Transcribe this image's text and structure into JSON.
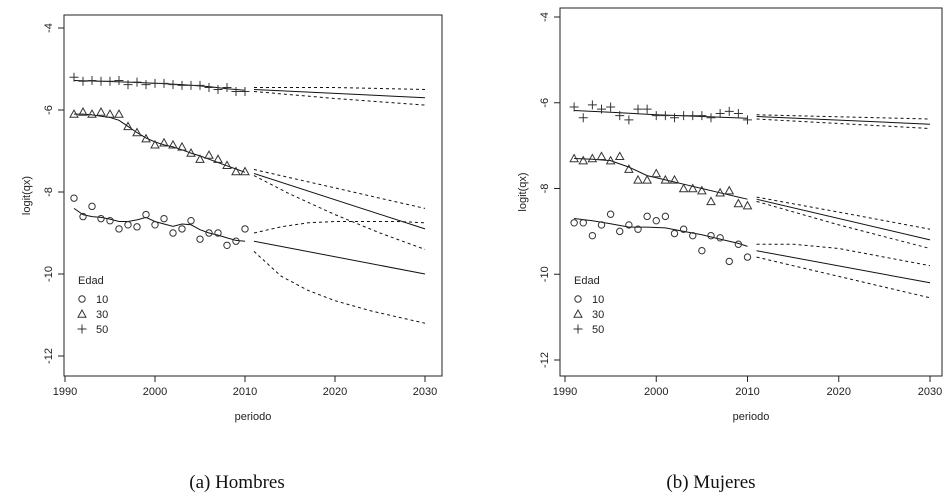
{
  "chart_data": [
    {
      "type": "line",
      "caption": "(a) Hombres",
      "xlabel": "periodo",
      "ylabel": "logit(qx)",
      "xlim": [
        1990,
        2030
      ],
      "ylim": [
        -12,
        -4
      ],
      "xticks": [
        "1990",
        "2000",
        "2010",
        "2020",
        "2030"
      ],
      "yticks": [
        "-4",
        "-6",
        "-8",
        "-10",
        "-12"
      ],
      "legend_title": "Edad",
      "legend_placement": "bottom-left",
      "series": [
        {
          "name": "10",
          "marker": "circle",
          "observed_x": [
            1991,
            1992,
            1993,
            1994,
            1995,
            1996,
            1997,
            1998,
            1999,
            2000,
            2001,
            2002,
            2003,
            2004,
            2005,
            2006,
            2007,
            2008,
            2009,
            2010
          ],
          "observed_y": [
            -8.15,
            -8.6,
            -8.35,
            -8.65,
            -8.7,
            -8.9,
            -8.8,
            -8.85,
            -8.55,
            -8.8,
            -8.65,
            -9.0,
            -8.9,
            -8.7,
            -9.15,
            -9.0,
            -9.0,
            -9.3,
            -9.2,
            -8.9
          ],
          "fitted_x": [
            1991,
            1992,
            1993,
            1994,
            1995,
            1996,
            1997,
            1998,
            1999,
            2000,
            2001,
            2002,
            2003,
            2004,
            2005,
            2006,
            2007,
            2008,
            2009,
            2010
          ],
          "fitted_y": [
            -8.4,
            -8.55,
            -8.6,
            -8.62,
            -8.66,
            -8.72,
            -8.72,
            -8.68,
            -8.62,
            -8.72,
            -8.78,
            -8.84,
            -8.78,
            -8.8,
            -8.92,
            -9.0,
            -9.05,
            -9.12,
            -9.18,
            -9.2
          ],
          "forecast_x": [
            2011,
            2030
          ],
          "forecast_y": [
            -9.2,
            -10.0
          ],
          "lower_x": [
            2011,
            2014,
            2017,
            2020,
            2024,
            2027,
            2030
          ],
          "lower_y": [
            -9.45,
            -10.05,
            -10.4,
            -10.65,
            -10.9,
            -11.05,
            -11.2
          ],
          "upper_x": [
            2011,
            2014,
            2017,
            2020,
            2024,
            2027,
            2030
          ],
          "upper_y": [
            -9.0,
            -8.85,
            -8.75,
            -8.72,
            -8.72,
            -8.72,
            -8.75
          ]
        },
        {
          "name": "30",
          "marker": "triangle",
          "observed_x": [
            1991,
            1992,
            1993,
            1994,
            1995,
            1996,
            1997,
            1998,
            1999,
            2000,
            2001,
            2002,
            2003,
            2004,
            2005,
            2006,
            2007,
            2008,
            2009,
            2010
          ],
          "observed_y": [
            -6.1,
            -6.05,
            -6.1,
            -6.05,
            -6.1,
            -6.1,
            -6.4,
            -6.55,
            -6.7,
            -6.85,
            -6.8,
            -6.85,
            -6.9,
            -7.05,
            -7.2,
            -7.1,
            -7.2,
            -7.35,
            -7.5,
            -7.5
          ],
          "fitted_x": [
            1991,
            1992,
            1993,
            1994,
            1995,
            1996,
            1997,
            1998,
            1999,
            2000,
            2001,
            2002,
            2003,
            2004,
            2005,
            2006,
            2007,
            2008,
            2009,
            2010
          ],
          "fitted_y": [
            -6.1,
            -6.1,
            -6.12,
            -6.15,
            -6.18,
            -6.25,
            -6.4,
            -6.55,
            -6.68,
            -6.78,
            -6.85,
            -6.9,
            -6.97,
            -7.05,
            -7.12,
            -7.2,
            -7.28,
            -7.36,
            -7.44,
            -7.52
          ],
          "forecast_x": [
            2011,
            2030
          ],
          "forecast_y": [
            -7.55,
            -8.9
          ],
          "lower_x": [
            2011,
            2015,
            2020,
            2025,
            2030
          ],
          "lower_y": [
            -7.6,
            -8.05,
            -8.55,
            -9.0,
            -9.4
          ],
          "upper_x": [
            2011,
            2015,
            2020,
            2025,
            2030
          ],
          "upper_y": [
            -7.45,
            -7.65,
            -7.9,
            -8.15,
            -8.4
          ]
        },
        {
          "name": "50",
          "marker": "plus",
          "observed_x": [
            1991,
            1992,
            1993,
            1994,
            1995,
            1996,
            1997,
            1998,
            1999,
            2000,
            2001,
            2002,
            2003,
            2004,
            2005,
            2006,
            2007,
            2008,
            2009,
            2010
          ],
          "observed_y": [
            -5.2,
            -5.3,
            -5.28,
            -5.3,
            -5.3,
            -5.28,
            -5.38,
            -5.32,
            -5.38,
            -5.35,
            -5.35,
            -5.38,
            -5.4,
            -5.4,
            -5.4,
            -5.45,
            -5.5,
            -5.45,
            -5.55,
            -5.55
          ],
          "fitted_x": [
            1991,
            1994,
            1997,
            2000,
            2003,
            2006,
            2008,
            2010
          ],
          "fitted_y": [
            -5.28,
            -5.3,
            -5.32,
            -5.35,
            -5.38,
            -5.43,
            -5.48,
            -5.52
          ],
          "forecast_x": [
            2011,
            2030
          ],
          "forecast_y": [
            -5.5,
            -5.7
          ],
          "lower_x": [
            2011,
            2020,
            2030
          ],
          "lower_y": [
            -5.55,
            -5.72,
            -5.88
          ],
          "upper_x": [
            2011,
            2020,
            2030
          ],
          "upper_y": [
            -5.45,
            -5.45,
            -5.5
          ]
        }
      ]
    },
    {
      "type": "line",
      "caption": "(b) Mujeres",
      "xlabel": "periodo",
      "ylabel": "logit(qx)",
      "xlim": [
        1990,
        2030
      ],
      "ylim": [
        -12,
        -4
      ],
      "xticks": [
        "1990",
        "2000",
        "2010",
        "2020",
        "2030"
      ],
      "yticks": [
        "-4",
        "-6",
        "-8",
        "-10",
        "-12"
      ],
      "legend_title": "Edad",
      "legend_placement": "bottom-left",
      "series": [
        {
          "name": "10",
          "marker": "circle",
          "observed_x": [
            1991,
            1992,
            1993,
            1994,
            1995,
            1996,
            1997,
            1998,
            1999,
            2000,
            2001,
            2002,
            2003,
            2004,
            2005,
            2006,
            2007,
            2008,
            2009,
            2010
          ],
          "observed_y": [
            -8.8,
            -8.8,
            -9.1,
            -8.85,
            -8.6,
            -9.0,
            -8.85,
            -8.95,
            -8.65,
            -8.75,
            -8.65,
            -9.05,
            -8.95,
            -9.1,
            -9.45,
            -9.1,
            -9.15,
            -9.7,
            -9.3,
            -9.6
          ],
          "fitted_x": [
            1991,
            1993,
            1995,
            1997,
            1999,
            2001,
            2003,
            2005,
            2007,
            2009,
            2010
          ],
          "fitted_y": [
            -8.7,
            -8.75,
            -8.82,
            -8.9,
            -8.9,
            -8.92,
            -9.0,
            -9.08,
            -9.18,
            -9.28,
            -9.35
          ],
          "forecast_x": [
            2011,
            2030
          ],
          "forecast_y": [
            -9.45,
            -10.2
          ],
          "lower_x": [
            2011,
            2015,
            2020,
            2025,
            2030
          ],
          "lower_y": [
            -9.6,
            -9.8,
            -10.05,
            -10.3,
            -10.55
          ],
          "upper_x": [
            2011,
            2015,
            2020,
            2025,
            2030
          ],
          "upper_y": [
            -9.3,
            -9.3,
            -9.4,
            -9.6,
            -9.8
          ]
        },
        {
          "name": "30",
          "marker": "triangle",
          "observed_x": [
            1991,
            1992,
            1993,
            1994,
            1995,
            1996,
            1997,
            1998,
            1999,
            2000,
            2001,
            2002,
            2003,
            2004,
            2005,
            2006,
            2007,
            2008,
            2009,
            2010
          ],
          "observed_y": [
            -7.3,
            -7.35,
            -7.3,
            -7.25,
            -7.35,
            -7.25,
            -7.55,
            -7.8,
            -7.8,
            -7.65,
            -7.8,
            -7.8,
            -8.0,
            -8.0,
            -8.05,
            -8.3,
            -8.1,
            -8.05,
            -8.35,
            -8.4
          ],
          "fitted_x": [
            1991,
            1993,
            1995,
            1997,
            1999,
            2001,
            2003,
            2005,
            2007,
            2009,
            2010
          ],
          "fitted_y": [
            -7.3,
            -7.32,
            -7.35,
            -7.5,
            -7.7,
            -7.8,
            -7.9,
            -8.0,
            -8.1,
            -8.2,
            -8.25
          ],
          "forecast_x": [
            2011,
            2030
          ],
          "forecast_y": [
            -8.25,
            -9.2
          ],
          "lower_x": [
            2011,
            2020,
            2030
          ],
          "lower_y": [
            -8.3,
            -8.85,
            -9.4
          ],
          "upper_x": [
            2011,
            2020,
            2030
          ],
          "upper_y": [
            -8.2,
            -8.55,
            -8.95
          ]
        },
        {
          "name": "50",
          "marker": "plus",
          "observed_x": [
            1991,
            1992,
            1993,
            1994,
            1995,
            1996,
            1997,
            1998,
            1999,
            2000,
            2001,
            2002,
            2003,
            2004,
            2005,
            2006,
            2007,
            2008,
            2009,
            2010
          ],
          "observed_y": [
            -6.1,
            -6.35,
            -6.05,
            -6.15,
            -6.1,
            -6.3,
            -6.4,
            -6.15,
            -6.15,
            -6.3,
            -6.3,
            -6.35,
            -6.3,
            -6.3,
            -6.3,
            -6.35,
            -6.25,
            -6.2,
            -6.25,
            -6.4
          ],
          "fitted_x": [
            1991,
            1995,
            2000,
            2005,
            2010
          ],
          "fitted_y": [
            -6.18,
            -6.22,
            -6.28,
            -6.32,
            -6.36
          ],
          "forecast_x": [
            2011,
            2030
          ],
          "forecast_y": [
            -6.32,
            -6.5
          ],
          "lower_x": [
            2011,
            2030
          ],
          "lower_y": [
            -6.38,
            -6.6
          ],
          "upper_x": [
            2011,
            2030
          ],
          "upper_y": [
            -6.28,
            -6.38
          ]
        }
      ]
    }
  ]
}
